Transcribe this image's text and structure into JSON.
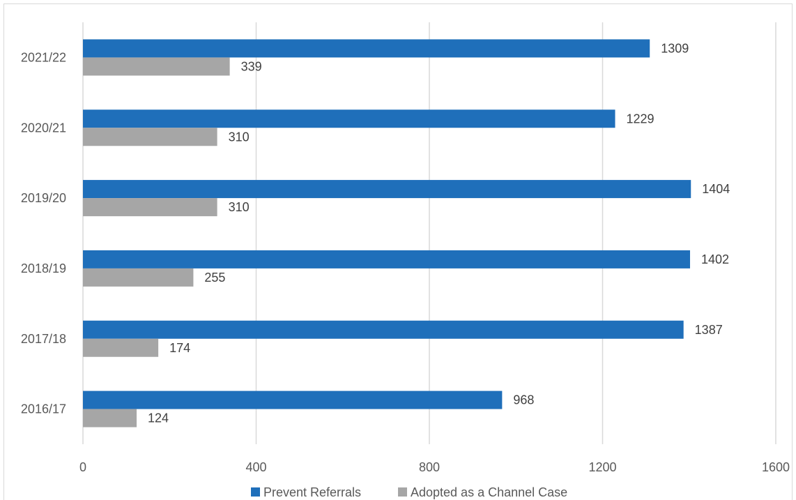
{
  "chart_data": {
    "type": "bar",
    "orientation": "horizontal",
    "categories": [
      "2016/17",
      "2017/18",
      "2018/19",
      "2019/20",
      "2020/21",
      "2021/22"
    ],
    "series": [
      {
        "name": "Prevent Referrals",
        "color": "#1f6fba",
        "values": [
          968,
          1387,
          1402,
          1404,
          1229,
          1309
        ]
      },
      {
        "name": "Adopted as a Channel Case",
        "color": "#a6a6a6",
        "values": [
          124,
          174,
          255,
          310,
          310,
          339
        ]
      }
    ],
    "xlim": [
      0,
      1600
    ],
    "xticks": [
      0,
      400,
      800,
      1200,
      1600
    ],
    "grid": "vertical",
    "legend": "bottom",
    "data_labels": true,
    "title": "",
    "xlabel": "",
    "ylabel": ""
  }
}
